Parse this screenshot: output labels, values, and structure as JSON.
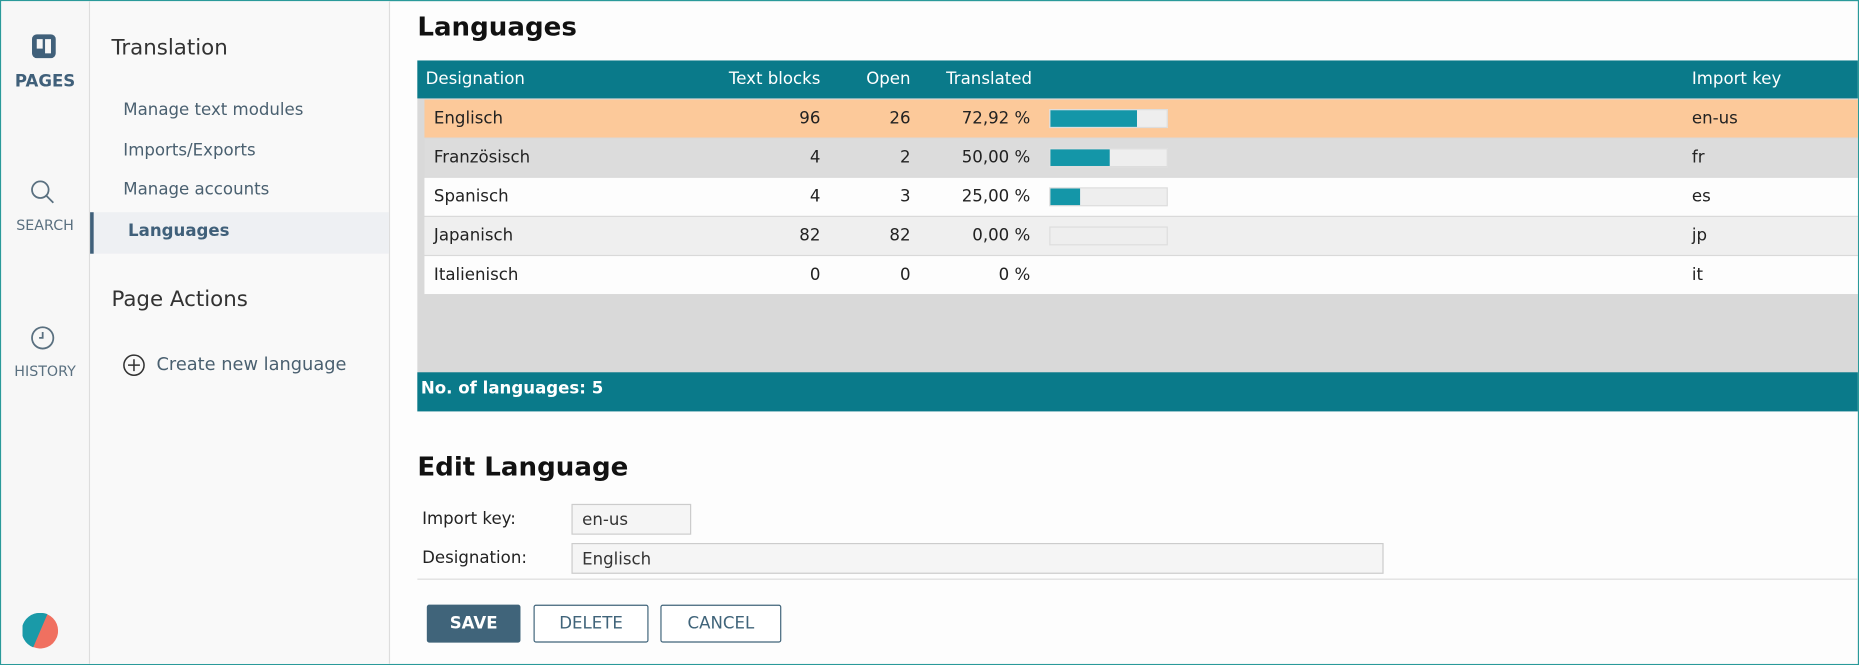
{
  "nav": [
    "PAGES",
    "SEARCH",
    "HISTORY"
  ],
  "sidebar": {
    "title": "Translation",
    "links": [
      "Manage text modules",
      "Imports/Exports",
      "Manage accounts",
      "Languages"
    ],
    "actions_title": "Page Actions",
    "actions": [
      "Create new language"
    ]
  },
  "languages": {
    "title": "Languages",
    "headers": [
      "Designation",
      "Text blocks",
      "Open",
      "Translated",
      "Import key"
    ],
    "rows": [
      [
        "Englisch",
        "96",
        "26",
        "72,92 %",
        "en-us"
      ],
      [
        "Französisch",
        "4",
        "2",
        "50,00 %",
        "fr"
      ],
      [
        "Spanisch",
        "4",
        "3",
        "25,00 %",
        "es"
      ],
      [
        "Japanisch",
        "82",
        "82",
        "0,00 %",
        "jp"
      ],
      [
        "Italienisch",
        "0",
        "0",
        "0 %",
        "it"
      ]
    ],
    "footer": "No. of languages: 5"
  },
  "edit": {
    "title": "Edit Language",
    "fields": [
      {
        "label": "Import key:",
        "value": "en-us"
      },
      {
        "label": "Designation:",
        "value": "Englisch"
      }
    ],
    "buttons": [
      "SAVE",
      "DELETE",
      "CANCEL"
    ]
  }
}
